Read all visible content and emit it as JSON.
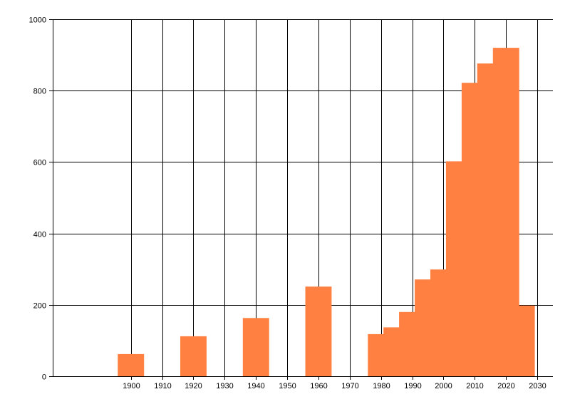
{
  "chart_data": {
    "type": "bar",
    "title": "",
    "xlabel": "",
    "ylabel": "",
    "x": [
      1900,
      1920,
      1940,
      1960,
      1980,
      1985,
      1990,
      1995,
      2000,
      2005,
      2010,
      2015,
      2020,
      2025
    ],
    "values": [
      62,
      112,
      163,
      251,
      118,
      137,
      180,
      271,
      299,
      602,
      822,
      876,
      920,
      198
    ],
    "xlim": [
      1875,
      2035
    ],
    "ylim": [
      0,
      1000
    ],
    "x_ticks": [
      "1900",
      "1910",
      "1920",
      "1930",
      "1940",
      "1950",
      "1960",
      "1970",
      "1980",
      "1990",
      "2000",
      "2010",
      "2020",
      "2030"
    ],
    "y_ticks": [
      "0",
      "200",
      "400",
      "600",
      "800",
      "1000"
    ],
    "bar_color": "#ff8040",
    "grid": true,
    "axis_color": "#000000",
    "background": "#ffffff"
  }
}
